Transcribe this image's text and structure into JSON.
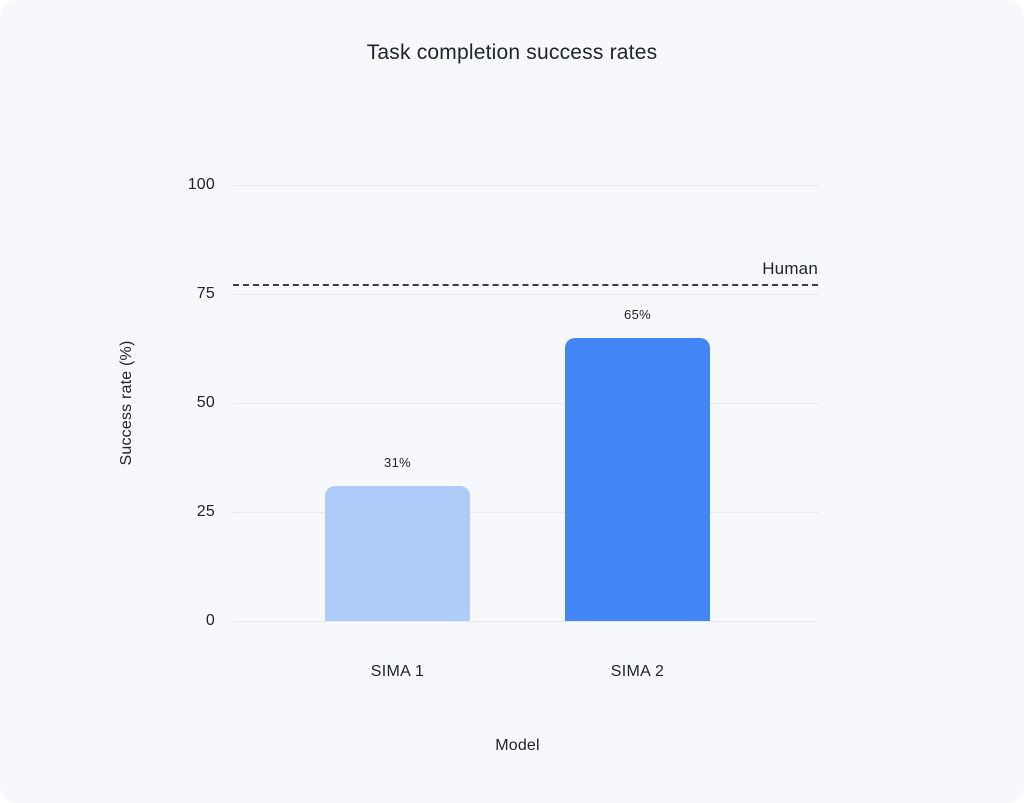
{
  "chart_data": {
    "type": "bar",
    "title": "Task completion success rates",
    "xlabel": "Model",
    "ylabel": "Success rate (%)",
    "categories": [
      "SIMA 1",
      "SIMA 2"
    ],
    "values": [
      31,
      65
    ],
    "value_labels": [
      "31%",
      "65%"
    ],
    "bar_colors": [
      "#aecbfa",
      "#4285f4"
    ],
    "yticks": [
      0,
      25,
      50,
      75,
      100
    ],
    "ytick_labels": [
      "0",
      "25",
      "50",
      "75",
      "100"
    ],
    "ylim": [
      0,
      100
    ],
    "grid": true,
    "legend": "none",
    "reference_line": {
      "label": "Human",
      "value": 77,
      "style": "dashed"
    }
  },
  "colors": {
    "background": "#f7f8fc",
    "page": "#ffffff",
    "grid": "#e6e8ef",
    "text": "#20242e",
    "reference_line": "#3c4043",
    "bar_sima1": "#aecbfa",
    "bar_sima2": "#4285f4"
  }
}
